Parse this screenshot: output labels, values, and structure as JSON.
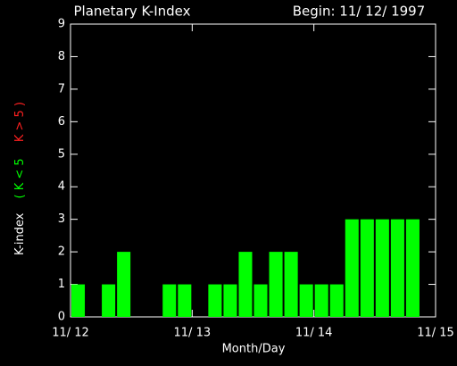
{
  "chart_data": {
    "type": "bar",
    "title": "Planetary K-Index",
    "subtitle": "Begin: 11/ 12/ 1997",
    "x_label": "Month/Day",
    "y_label": {
      "text": "K-index",
      "low": "( K < 5",
      "high": "K > 5 )",
      "low_color": "#00ff00",
      "high_color": "#ff2020"
    },
    "x": [
      0,
      0.125,
      0.25,
      0.375,
      0.5,
      0.625,
      0.75,
      0.875,
      1,
      1.125,
      1.25,
      1.375,
      1.5,
      1.625,
      1.75,
      1.875,
      2,
      2.125,
      2.25,
      2.375,
      2.5,
      2.625,
      2.75,
      2.875
    ],
    "values": [
      1,
      0,
      1,
      2,
      0,
      0,
      1,
      1,
      0,
      1,
      1,
      2,
      1,
      2,
      2,
      1,
      1,
      1,
      3,
      3,
      3,
      3,
      3,
      0
    ],
    "bar_width": 0.125,
    "color": "#00ff00",
    "xlim": [
      0,
      3
    ],
    "xticks": [
      {
        "value": 0,
        "label": "11/ 12"
      },
      {
        "value": 1,
        "label": "11/ 13"
      },
      {
        "value": 2,
        "label": "11/ 14"
      },
      {
        "value": 3,
        "label": "11/ 15"
      }
    ],
    "ylim": [
      0,
      9
    ],
    "yticks": [
      0,
      1,
      2,
      3,
      4,
      5,
      6,
      7,
      8,
      9
    ]
  }
}
